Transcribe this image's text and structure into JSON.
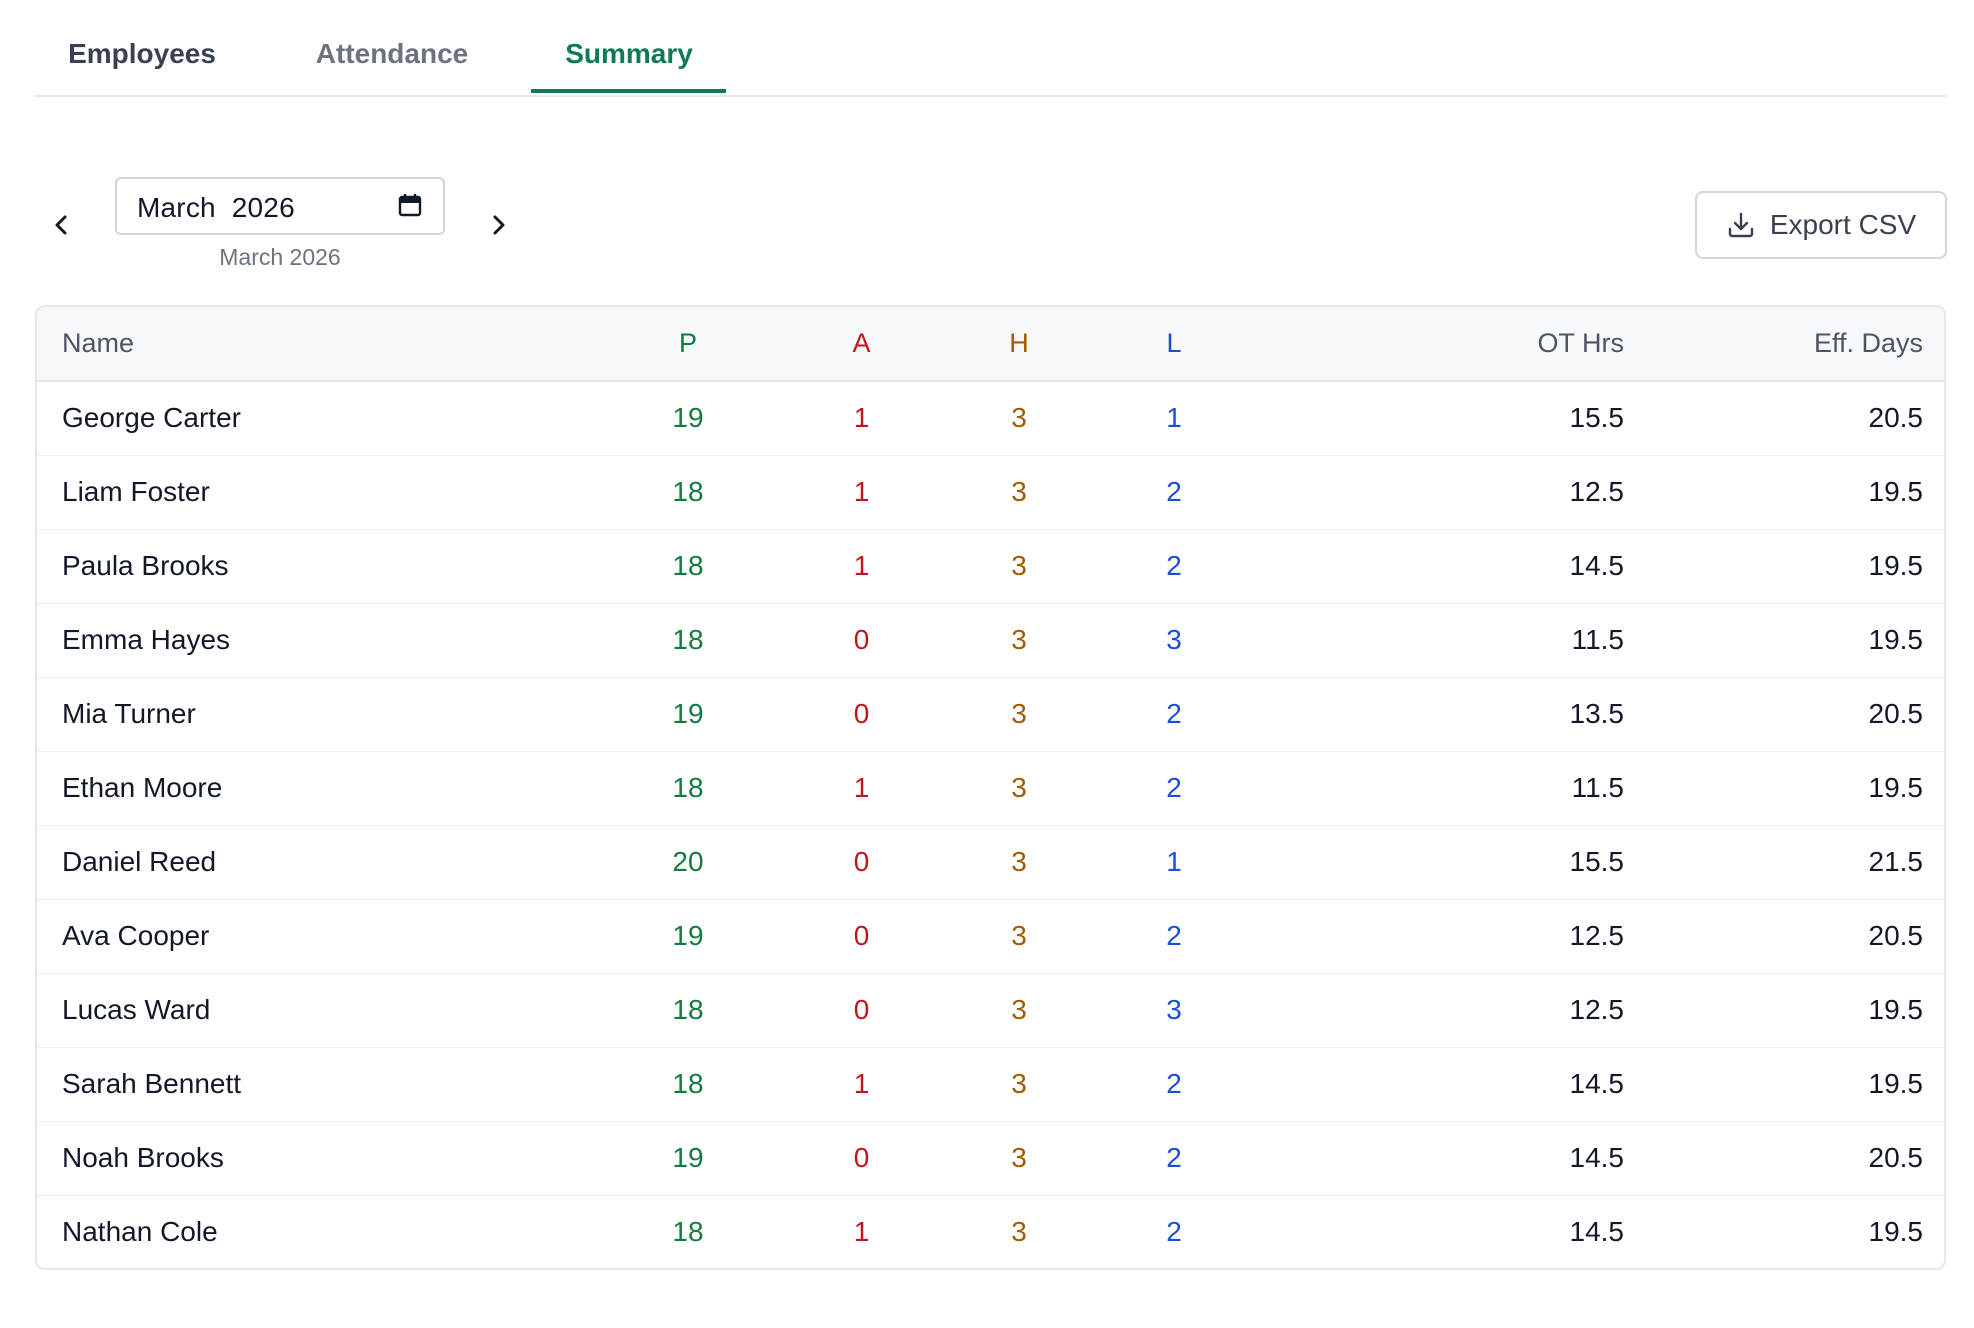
{
  "tabs": [
    {
      "label": "Employees",
      "active": false
    },
    {
      "label": "Attendance",
      "active": false
    },
    {
      "label": "Summary",
      "active": true
    }
  ],
  "month_nav": {
    "selected_month": "March  2026",
    "caption": "March 2026",
    "prev_icon": "chevron-left-icon",
    "next_icon": "chevron-right-icon",
    "calendar_icon": "calendar-icon"
  },
  "export": {
    "label": "Export CSV",
    "icon": "download-icon"
  },
  "colors": {
    "accent": "#0f7a57",
    "present": "#157a3f",
    "absent": "#c0161f",
    "holiday": "#a35b00",
    "leave": "#1d4ed8"
  },
  "table": {
    "headers": {
      "name": "Name",
      "p": "P",
      "a": "A",
      "h": "H",
      "l": "L",
      "ot": "OT Hrs",
      "eff": "Eff. Days"
    },
    "rows": [
      {
        "name": "George Carter",
        "p": "19",
        "a": "1",
        "h": "3",
        "l": "1",
        "ot": "15.5",
        "eff": "20.5"
      },
      {
        "name": "Liam Foster",
        "p": "18",
        "a": "1",
        "h": "3",
        "l": "2",
        "ot": "12.5",
        "eff": "19.5"
      },
      {
        "name": "Paula Brooks",
        "p": "18",
        "a": "1",
        "h": "3",
        "l": "2",
        "ot": "14.5",
        "eff": "19.5"
      },
      {
        "name": "Emma Hayes",
        "p": "18",
        "a": "0",
        "h": "3",
        "l": "3",
        "ot": "11.5",
        "eff": "19.5"
      },
      {
        "name": "Mia Turner",
        "p": "19",
        "a": "0",
        "h": "3",
        "l": "2",
        "ot": "13.5",
        "eff": "20.5"
      },
      {
        "name": "Ethan Moore",
        "p": "18",
        "a": "1",
        "h": "3",
        "l": "2",
        "ot": "11.5",
        "eff": "19.5"
      },
      {
        "name": "Daniel Reed",
        "p": "20",
        "a": "0",
        "h": "3",
        "l": "1",
        "ot": "15.5",
        "eff": "21.5"
      },
      {
        "name": "Ava Cooper",
        "p": "19",
        "a": "0",
        "h": "3",
        "l": "2",
        "ot": "12.5",
        "eff": "20.5"
      },
      {
        "name": "Lucas Ward",
        "p": "18",
        "a": "0",
        "h": "3",
        "l": "3",
        "ot": "12.5",
        "eff": "19.5"
      },
      {
        "name": "Sarah Bennett",
        "p": "18",
        "a": "1",
        "h": "3",
        "l": "2",
        "ot": "14.5",
        "eff": "19.5"
      },
      {
        "name": "Noah Brooks",
        "p": "19",
        "a": "0",
        "h": "3",
        "l": "2",
        "ot": "14.5",
        "eff": "20.5"
      },
      {
        "name": "Nathan Cole",
        "p": "18",
        "a": "1",
        "h": "3",
        "l": "2",
        "ot": "14.5",
        "eff": "19.5"
      }
    ]
  }
}
